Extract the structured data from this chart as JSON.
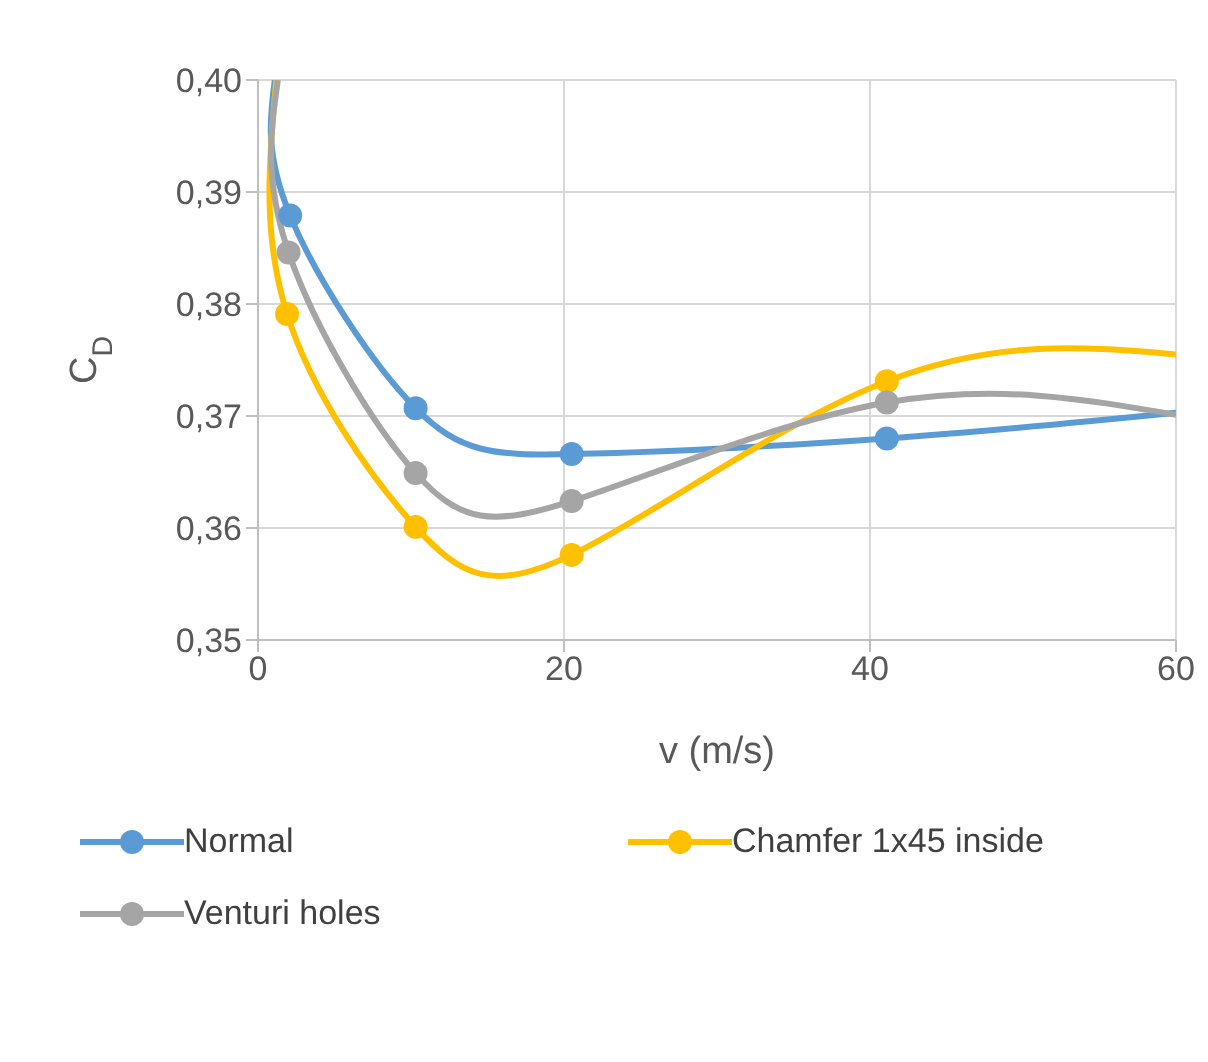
{
  "chart_data": {
    "type": "line",
    "xlabel": "v (m/s)",
    "ylabel": "C$_{D}$",
    "xlim": [
      0,
      60
    ],
    "xticks": [
      0,
      20,
      40,
      60
    ],
    "ylim": [
      0.35,
      0.4
    ],
    "yticks": [
      {
        "value": 0.35,
        "label": "0,35"
      },
      {
        "value": 0.36,
        "label": "0,36"
      },
      {
        "value": 0.37,
        "label": "0,37"
      },
      {
        "value": 0.38,
        "label": "0,38"
      },
      {
        "value": 0.39,
        "label": "0,39"
      },
      {
        "value": 0.4,
        "label": "0,40"
      }
    ],
    "grid": true,
    "legend": "bottom",
    "marker": "circle",
    "line_style": "solid",
    "series": [
      {
        "name": "Normal",
        "color": "#5b9bd5",
        "x": [
          1.1,
          2.1,
          10.3,
          20.5,
          41.1,
          60
        ],
        "values": [
          0.4,
          0.3879,
          0.3707,
          0.3666,
          0.368,
          0.3703
        ]
      },
      {
        "name": "Chamfer 1x45 inside",
        "color": "#ffc000",
        "x": [
          1.2,
          1.9,
          10.3,
          20.5,
          41.1,
          60
        ],
        "values": [
          0.4,
          0.3791,
          0.3601,
          0.3576,
          0.3731,
          0.3755
        ]
      },
      {
        "name": "Venturi holes",
        "color": "#a5a5a5",
        "x": [
          1.3,
          2.0,
          10.3,
          20.5,
          41.1,
          60
        ],
        "values": [
          0.4,
          0.3846,
          0.3649,
          0.3624,
          0.3712,
          0.3701
        ]
      }
    ]
  }
}
